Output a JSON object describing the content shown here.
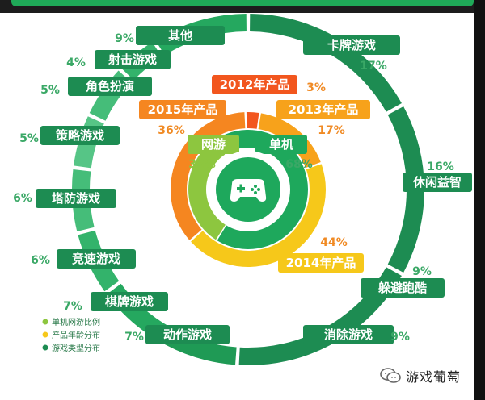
{
  "chart_data": [
    {
      "type": "pie",
      "title": "",
      "series_name": "单机网游比例",
      "categories": [
        "网游",
        "单机"
      ],
      "values": [
        32,
        68
      ],
      "colors": [
        "#8dc63f",
        "#1ea85c"
      ]
    },
    {
      "type": "pie",
      "title": "",
      "series_name": "产品年龄分布",
      "categories": [
        "2012年产品",
        "2013年产品",
        "2014年产品",
        "2015年产品"
      ],
      "values": [
        3,
        17,
        44,
        36
      ],
      "colors": [
        "#f2561e",
        "#f7a21b",
        "#f6c81a",
        "#f58620"
      ]
    },
    {
      "type": "pie",
      "title": "",
      "series_name": "游戏类型分布",
      "categories": [
        "卡牌游戏",
        "休闲益智",
        "躲避跑酷",
        "消除游戏",
        "动作游戏",
        "棋牌游戏",
        "竞速游戏",
        "塔防游戏",
        "策略游戏",
        "角色扮演",
        "射击游戏",
        "其他"
      ],
      "values": [
        17,
        16,
        9,
        9,
        7,
        7,
        6,
        6,
        5,
        5,
        4,
        9
      ],
      "colors": [
        "#1d8c52",
        "#1d8c52",
        "#1d8c52",
        "#1d8c52",
        "#1f9a55",
        "#25a85f",
        "#33b36b",
        "#45bd79",
        "#56c586",
        "#45bd79",
        "#33b36b",
        "#25a85f"
      ]
    }
  ],
  "legend": {
    "items": [
      {
        "label": "单机网游比例",
        "color": "#8dc63f"
      },
      {
        "label": "产品年龄分布",
        "color": "#f6c81a"
      },
      {
        "label": "游戏类型分布",
        "color": "#1d8c52"
      }
    ]
  },
  "watermark": {
    "text": "游戏葡萄"
  },
  "center_icon": {
    "name": "gamepad-icon"
  },
  "colors": {
    "pct_green": "#3aa866",
    "pct_orange": "#f08a24",
    "pct_inner": "#8dc63f"
  }
}
